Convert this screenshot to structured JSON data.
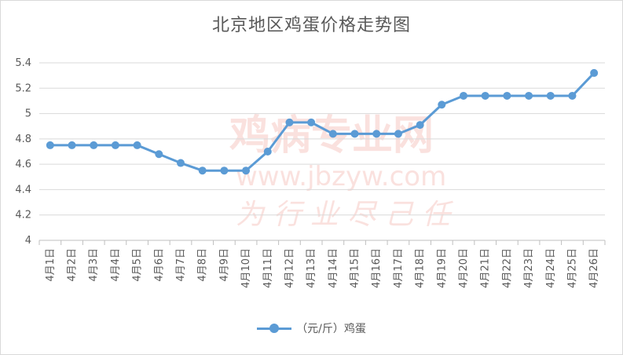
{
  "chart_data": {
    "type": "line",
    "title": "北京地区鸡蛋价格走势图",
    "categories": [
      "4月1日",
      "4月2日",
      "4月3日",
      "4月4日",
      "4月5日",
      "4月6日",
      "4月7日",
      "4月8日",
      "4月9日",
      "4月10日",
      "4月11日",
      "4月12日",
      "4月13日",
      "4月14日",
      "4月15日",
      "4月16日",
      "4月17日",
      "4月18日",
      "4月19日",
      "4月20日",
      "4月21日",
      "4月22日",
      "4月23日",
      "4月24日",
      "4月25日",
      "4月26日"
    ],
    "series": [
      {
        "name": "（元/斤）鸡蛋",
        "color": "#5b9bd5",
        "values": [
          4.75,
          4.75,
          4.75,
          4.75,
          4.75,
          4.68,
          4.61,
          4.55,
          4.55,
          4.55,
          4.7,
          4.93,
          4.93,
          4.84,
          4.84,
          4.84,
          4.84,
          4.91,
          5.07,
          5.14,
          5.14,
          5.14,
          5.14,
          5.14,
          5.14,
          5.32
        ]
      }
    ],
    "ylim": [
      4,
      5.4
    ],
    "yticks": [
      "4",
      "4.2",
      "4.4",
      "4.6",
      "4.8",
      "5",
      "5.2",
      "5.4"
    ],
    "grid": true,
    "legend_position": "bottom"
  },
  "watermark": {
    "line1": "鸡病专业网",
    "line2": "www.jbzyw.com",
    "line3": "为 行 业 尽 己 任"
  },
  "colors": {
    "series": "#5b9bd5",
    "grid": "#d9d9d9",
    "text": "#595959"
  }
}
